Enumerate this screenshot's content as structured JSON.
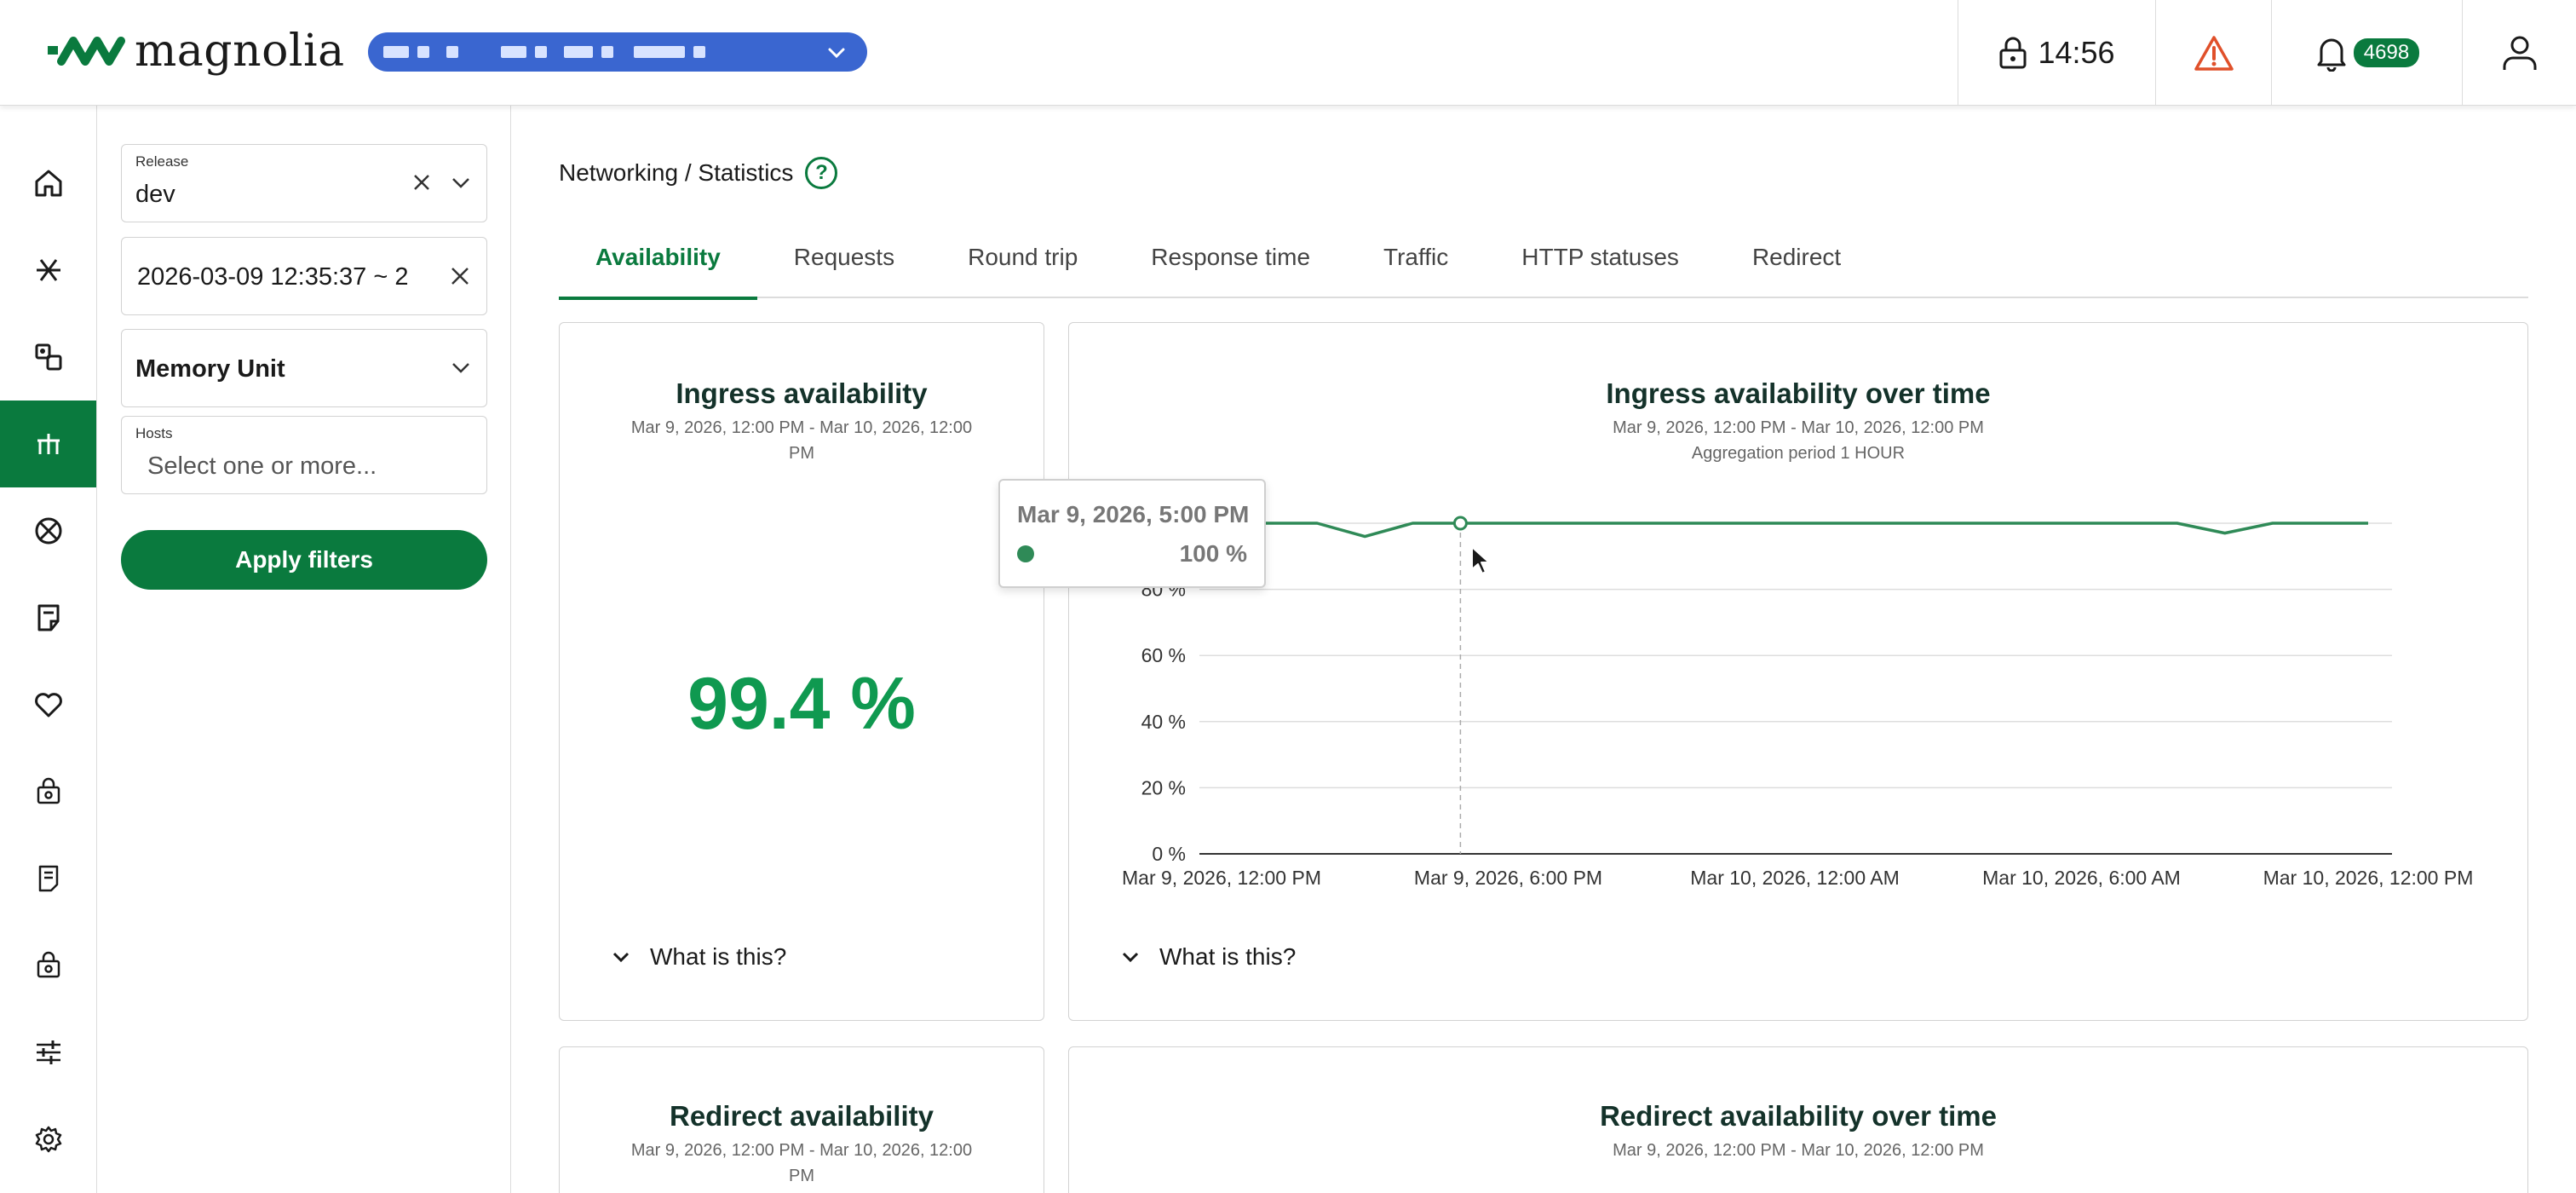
{
  "app": {
    "logo_text": "magnolia",
    "timer": "14:56",
    "notification_count": "4698",
    "colors": {
      "brand_green": "#0a7a3e",
      "value_green": "#0f9950",
      "env_pill": "#3a66d0",
      "warning": "#e0502a",
      "series": "#2f8a57"
    }
  },
  "rail": {
    "items": [
      {
        "icon": "home-icon"
      },
      {
        "icon": "asterisk-icon"
      },
      {
        "icon": "components-icon"
      },
      {
        "icon": "networking-icon",
        "active": true
      },
      {
        "icon": "crossed-circle-icon"
      },
      {
        "icon": "notes-icon"
      },
      {
        "icon": "heart-icon"
      },
      {
        "icon": "package-icon"
      },
      {
        "icon": "document-icon"
      },
      {
        "icon": "package-alt-icon"
      },
      {
        "icon": "sliders-icon"
      },
      {
        "icon": "settings-icon"
      }
    ]
  },
  "filters": {
    "release_label": "Release",
    "release_value": "dev",
    "date_range_value": "2026-03-09 12:35:37 ~ 2",
    "memory_unit_value": "Memory Unit",
    "hosts_label": "Hosts",
    "hosts_placeholder": "Select one or more...",
    "apply_label": "Apply filters"
  },
  "main": {
    "breadcrumb": "Networking / Statistics",
    "help_glyph": "?",
    "tabs": [
      {
        "label": "Availability",
        "active": true
      },
      {
        "label": "Requests"
      },
      {
        "label": "Round trip"
      },
      {
        "label": "Response time"
      },
      {
        "label": "Traffic"
      },
      {
        "label": "HTTP statuses"
      },
      {
        "label": "Redirect"
      }
    ]
  },
  "cards": {
    "ingress": {
      "title": "Ingress availability",
      "subtitle_line1": "Mar 9, 2026, 12:00 PM - Mar 10, 2026, 12:00",
      "subtitle_line2": "PM",
      "value": "99.4 %",
      "what_label": "What is this?"
    },
    "ingress_time": {
      "title": "Ingress availability over time",
      "subtitle": "Mar 9, 2026, 12:00 PM - Mar 10, 2026, 12:00 PM",
      "aggregation": "Aggregation period 1 HOUR",
      "what_label": "What is this?",
      "tooltip_title": "Mar 9, 2026, 5:00 PM",
      "tooltip_value": "100 %"
    },
    "redirect": {
      "title": "Redirect availability",
      "subtitle_line1": "Mar 9, 2026, 12:00 PM - Mar 10, 2026, 12:00",
      "subtitle_line2": "PM"
    },
    "redirect_time": {
      "title": "Redirect availability over time",
      "subtitle": "Mar 9, 2026, 12:00 PM - Mar 10, 2026, 12:00 PM"
    }
  },
  "chart_data": {
    "type": "line",
    "title": "Ingress availability over time",
    "xlabel": "",
    "ylabel": "",
    "x_tick_labels": [
      "Mar 9, 2026, 12:00 PM",
      "Mar 9, 2026, 6:00 PM",
      "Mar 10, 2026, 12:00 AM",
      "Mar 10, 2026, 6:00 AM",
      "Mar 10, 2026, 12:00 PM"
    ],
    "y_tick_labels": [
      "0 %",
      "20 %",
      "40 %",
      "60 %",
      "80 %",
      "100 %"
    ],
    "ylim": [
      0,
      100
    ],
    "grid": true,
    "series": [
      {
        "x": [
          "Mar 9, 2026, 12:00 PM",
          "Mar 9, 2026, 1:00 PM",
          "Mar 9, 2026, 2:00 PM",
          "Mar 9, 2026, 3:00 PM",
          "Mar 9, 2026, 4:00 PM",
          "Mar 9, 2026, 5:00 PM",
          "Mar 9, 2026, 6:00 PM",
          "Mar 9, 2026, 7:00 PM",
          "Mar 9, 2026, 8:00 PM",
          "Mar 9, 2026, 9:00 PM",
          "Mar 9, 2026, 10:00 PM",
          "Mar 9, 2026, 11:00 PM",
          "Mar 10, 2026, 12:00 AM",
          "Mar 10, 2026, 1:00 AM",
          "Mar 10, 2026, 2:00 AM",
          "Mar 10, 2026, 3:00 AM",
          "Mar 10, 2026, 4:00 AM",
          "Mar 10, 2026, 5:00 AM",
          "Mar 10, 2026, 6:00 AM",
          "Mar 10, 2026, 7:00 AM",
          "Mar 10, 2026, 8:00 AM",
          "Mar 10, 2026, 9:00 AM",
          "Mar 10, 2026, 10:00 AM",
          "Mar 10, 2026, 11:00 AM",
          "Mar 10, 2026, 12:00 PM"
        ],
        "values": [
          100,
          100,
          100,
          96,
          100,
          100,
          100,
          100,
          100,
          100,
          100,
          100,
          100,
          100,
          100,
          100,
          100,
          100,
          100,
          100,
          100,
          97,
          100,
          100,
          100
        ]
      }
    ],
    "highlight": {
      "x": "Mar 9, 2026, 5:00 PM",
      "y": 100
    }
  }
}
